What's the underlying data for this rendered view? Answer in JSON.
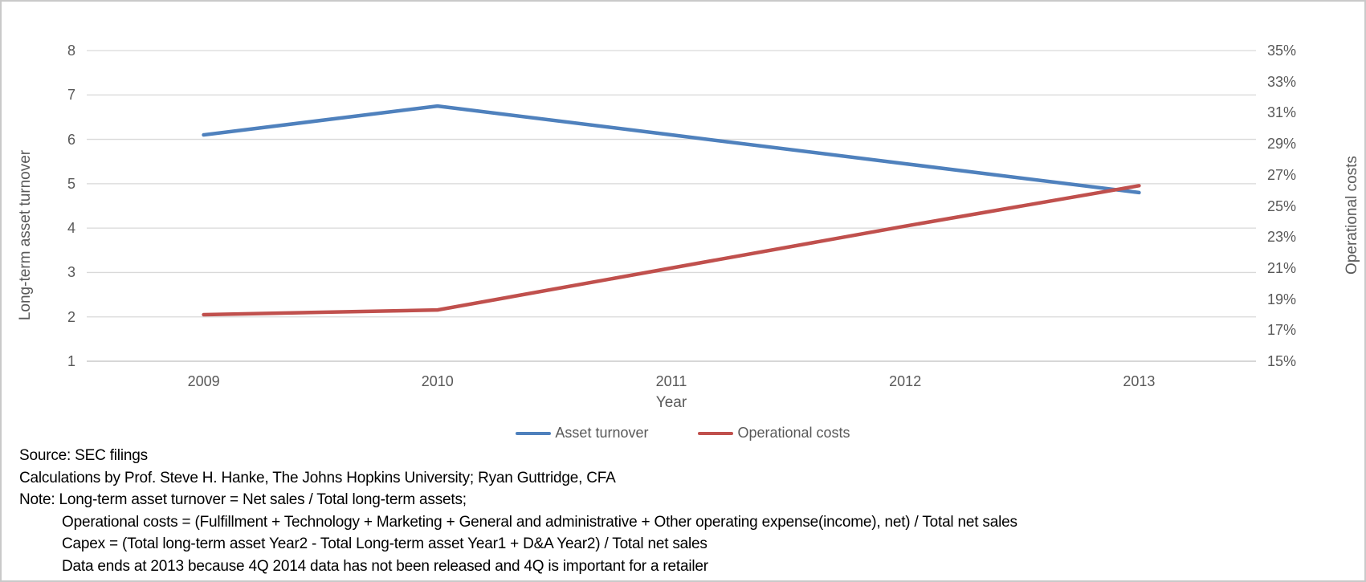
{
  "chart_data": {
    "type": "line",
    "title": "",
    "xlabel": "Year",
    "x_labels": [
      "2009",
      "2010",
      "2011",
      "2012",
      "2013"
    ],
    "series": [
      {
        "name": "Asset turnover",
        "axis": "left",
        "color": "#4F81BD",
        "values": [
          6.1,
          6.75,
          6.1,
          5.45,
          4.8
        ]
      },
      {
        "name": "Operational costs",
        "axis": "right",
        "color": "#C0504D",
        "values": [
          18.0,
          18.3,
          21.0,
          23.7,
          26.3
        ]
      }
    ],
    "left_axis": {
      "title": "Long-term asset turnover",
      "min": 1,
      "max": 8,
      "step": 1,
      "ticks": [
        "8",
        "7",
        "6",
        "5",
        "4",
        "3",
        "2",
        "1"
      ]
    },
    "right_axis": {
      "title": "Operational costs",
      "min": 15,
      "max": 35,
      "step": 2,
      "ticks": [
        "35%",
        "33%",
        "31%",
        "29%",
        "27%",
        "25%",
        "23%",
        "21%",
        "19%",
        "17%",
        "15%"
      ]
    },
    "grid": true,
    "legend_position": "bottom",
    "gridline_color": "#D9D9D9",
    "axisline_color": "#BFBFBF"
  },
  "footer": {
    "lines": [
      {
        "text": "Source: SEC filings",
        "indent": false
      },
      {
        "text": "Calculations by Prof. Steve H. Hanke, The Johns Hopkins University; Ryan Guttridge, CFA",
        "indent": false
      },
      {
        "text": "Note: Long-term asset turnover = Net sales / Total long-term assets;",
        "indent": false
      },
      {
        "text": "Operational costs = (Fulfillment + Technology + Marketing + General and administrative + Other operating expense(income), net) / Total net sales",
        "indent": true
      },
      {
        "text": "Capex = (Total long-term asset Year2 - Total Long-term asset Year1 + D&A Year2) / Total net sales",
        "indent": true
      },
      {
        "text": "Data ends at 2013 because 4Q 2014 data has not been released and 4Q is important for a retailer",
        "indent": true
      }
    ]
  }
}
